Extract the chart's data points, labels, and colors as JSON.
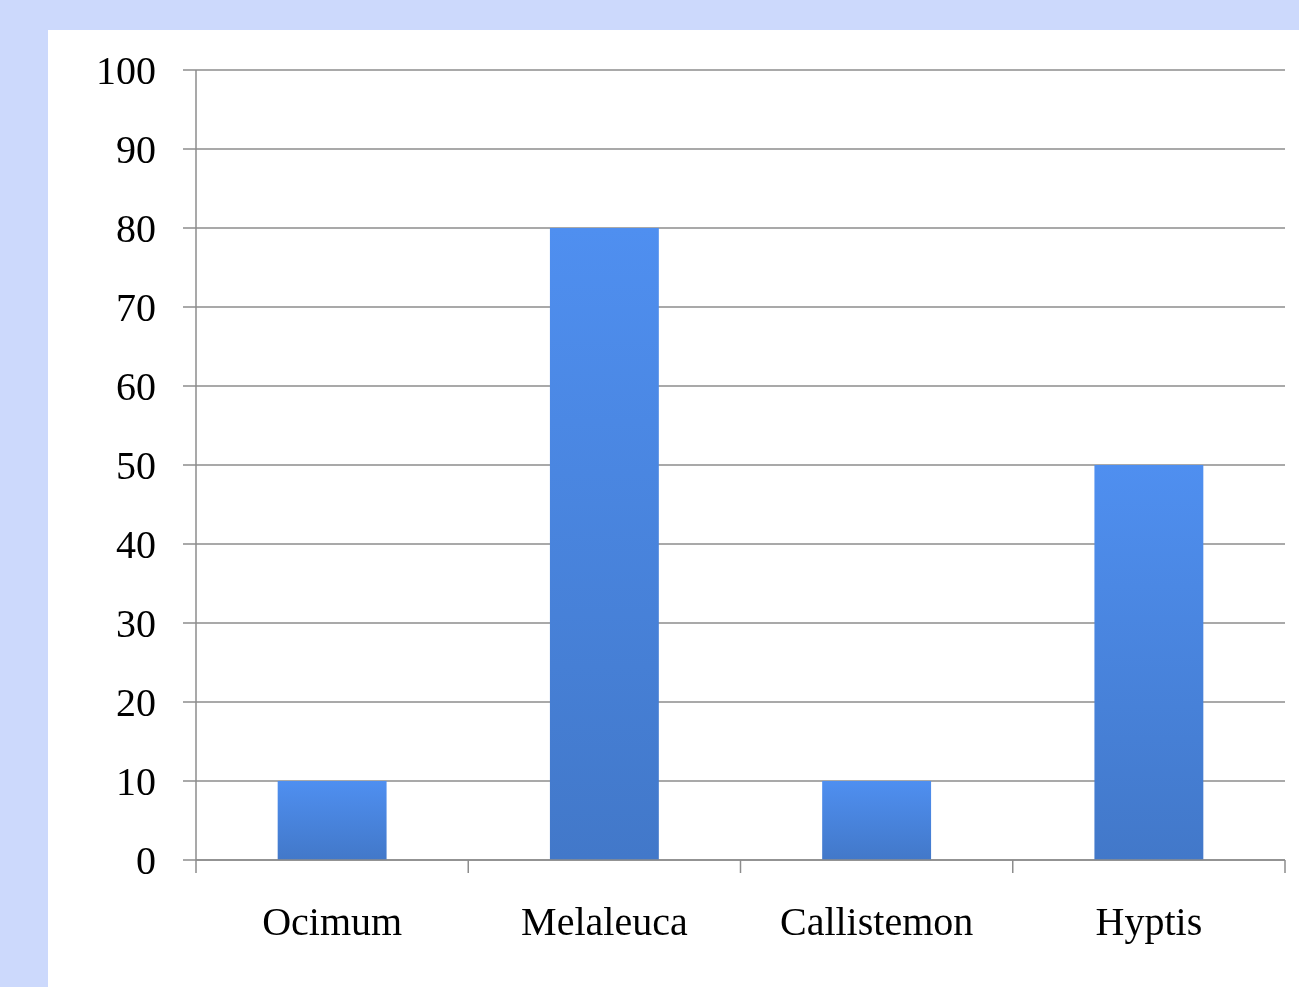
{
  "chart_data": {
    "type": "bar",
    "categories": [
      "Ocimum",
      "Melaleuca",
      "Callistemon",
      "Hyptis"
    ],
    "values": [
      10,
      80,
      10,
      50
    ],
    "color": "#4f8ff0",
    "ylim": [
      0,
      100
    ],
    "yticks": [
      0,
      10,
      20,
      30,
      40,
      50,
      60,
      70,
      80,
      90,
      100
    ],
    "grid": "y"
  }
}
